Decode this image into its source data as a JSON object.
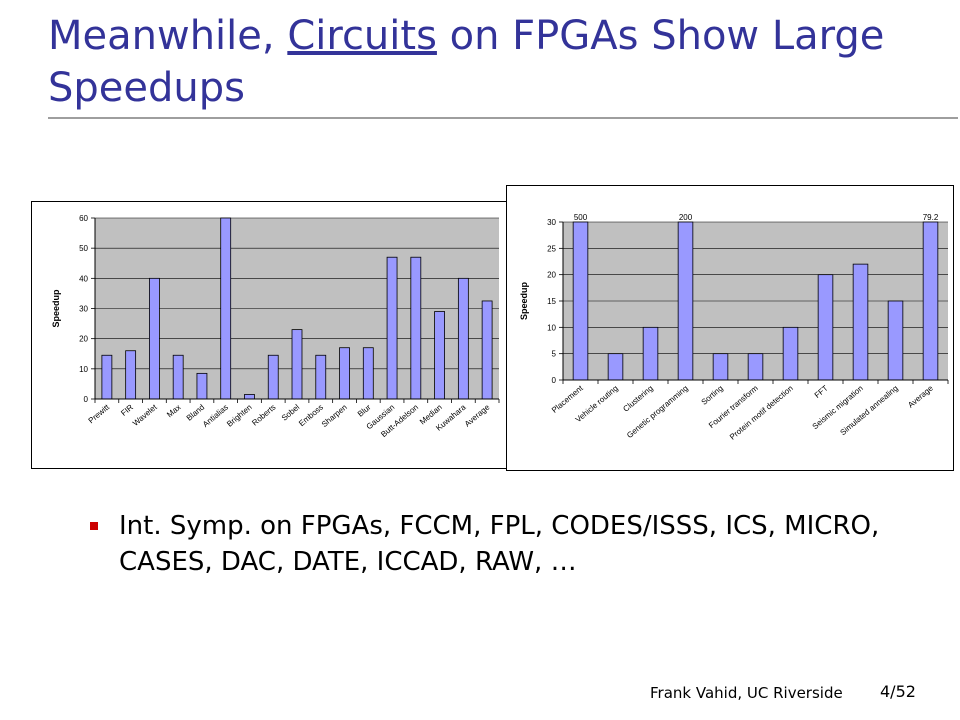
{
  "slide": {
    "title_part1": "Meanwhile, ",
    "title_link": "Circuits",
    "title_part2": " on FPGAs Show Large Speedups",
    "bullet": "Int. Symp. on FPGAs, FCCM, FPL, CODES/ISSS, ICS, MICRO, CASES, DAC, DATE, ICCAD, RAW, …",
    "footer": "Frank Vahid, UC Riverside",
    "page": "4/52"
  },
  "colors": {
    "title": "#333399",
    "bar": "#9999ff",
    "plot_bg": "#c0c0c0",
    "bullet": "#cc0000"
  },
  "chart_data": [
    {
      "type": "bar",
      "ylabel": "Speedup",
      "xlabel": "",
      "ylim": [
        0,
        60
      ],
      "yticks": [
        0,
        10,
        20,
        30,
        40,
        50,
        60
      ],
      "grid": true,
      "categories": [
        "Prewitt",
        "FIR",
        "Wavelet",
        "Max",
        "Bland",
        "Antialias",
        "Brighten",
        "Roberts",
        "Sobel",
        "Emboss",
        "Sharpen",
        "Blur",
        "Gaussian",
        "Butt-Adelson",
        "Median",
        "Kuwahara",
        "Average"
      ],
      "values": [
        14.5,
        16,
        40,
        14.5,
        8.5,
        61,
        1.5,
        14.5,
        23,
        14.5,
        17,
        17,
        47,
        47,
        29,
        40,
        32.5
      ]
    },
    {
      "type": "bar",
      "ylabel": "Speedup",
      "xlabel": "",
      "ylim": [
        0,
        30
      ],
      "yticks": [
        0,
        5,
        10,
        15,
        20,
        25,
        30
      ],
      "grid": true,
      "categories": [
        "Placement",
        "Vehicle routing",
        "Clustering",
        "Genetic programming",
        "Sorting",
        "Fourier transform",
        "Protein motif detection",
        "FFT",
        "Seismic migration",
        "Simulated annealing",
        "Average"
      ],
      "values": [
        500,
        5,
        10,
        200,
        5,
        5,
        10,
        20,
        22,
        15,
        79.2
      ],
      "data_labels": [
        "500",
        "",
        "",
        "200",
        "",
        "",
        "",
        "",
        "",
        "",
        "79.2"
      ]
    }
  ]
}
